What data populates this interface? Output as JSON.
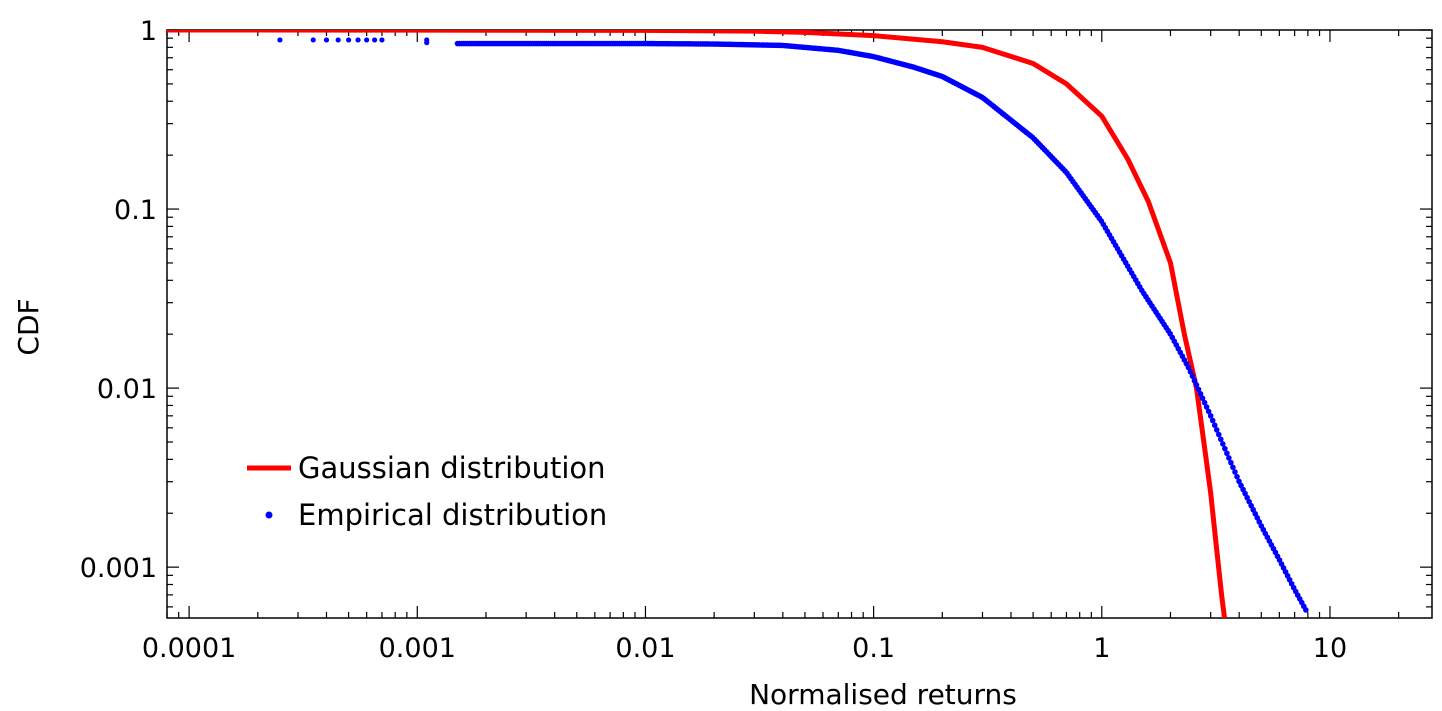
{
  "chart_data": {
    "type": "scatter",
    "xlabel": "Normalised returns",
    "ylabel": "CDF",
    "x_scale": "log",
    "y_scale": "log",
    "xlim": [
      8e-05,
      28
    ],
    "ylim": [
      0.00052,
      1
    ],
    "x_ticks": [
      0.0001,
      0.001,
      0.01,
      0.1,
      1,
      10
    ],
    "x_tick_labels": [
      "0.0001",
      "0.001",
      "0.01",
      "0.1",
      "1",
      "10"
    ],
    "y_ticks": [
      0.001,
      0.01,
      0.1,
      1
    ],
    "y_tick_labels": [
      "0.001",
      "0.01",
      "0.1",
      "1"
    ],
    "grid": false,
    "legend_position": "bottom-left",
    "series": [
      {
        "name": "Gaussian distribution",
        "style": "line",
        "color": "#ff0000",
        "points": [
          [
            8e-05,
            1.0
          ],
          [
            0.001,
            0.999
          ],
          [
            0.01,
            0.995
          ],
          [
            0.03,
            0.985
          ],
          [
            0.05,
            0.97
          ],
          [
            0.1,
            0.93
          ],
          [
            0.2,
            0.86
          ],
          [
            0.3,
            0.8
          ],
          [
            0.5,
            0.65
          ],
          [
            0.7,
            0.5
          ],
          [
            1.0,
            0.33
          ],
          [
            1.3,
            0.19
          ],
          [
            1.6,
            0.11
          ],
          [
            2.0,
            0.05
          ],
          [
            2.3,
            0.02
          ],
          [
            2.6,
            0.01
          ],
          [
            2.8,
            0.005
          ],
          [
            3.0,
            0.0026
          ],
          [
            3.2,
            0.0012
          ],
          [
            3.35,
            0.0007
          ],
          [
            3.45,
            0.00052
          ]
        ]
      },
      {
        "name": "Empirical distribution",
        "style": "dots",
        "color": "#0000ff",
        "points": [
          [
            0.00025,
            0.88
          ],
          [
            0.00035,
            0.88
          ],
          [
            0.0004,
            0.88
          ],
          [
            0.00045,
            0.88
          ],
          [
            0.0005,
            0.88
          ],
          [
            0.00055,
            0.88
          ],
          [
            0.0006,
            0.88
          ],
          [
            0.00065,
            0.88
          ],
          [
            0.0007,
            0.88
          ],
          [
            0.0011,
            0.88
          ],
          [
            0.0011,
            0.85
          ],
          [
            0.0015,
            0.84
          ],
          [
            0.002,
            0.84
          ],
          [
            0.003,
            0.84
          ],
          [
            0.005,
            0.84
          ],
          [
            0.01,
            0.84
          ],
          [
            0.02,
            0.835
          ],
          [
            0.04,
            0.82
          ],
          [
            0.07,
            0.77
          ],
          [
            0.1,
            0.71
          ],
          [
            0.15,
            0.62
          ],
          [
            0.2,
            0.55
          ],
          [
            0.3,
            0.42
          ],
          [
            0.5,
            0.25
          ],
          [
            0.7,
            0.16
          ],
          [
            1.0,
            0.085
          ],
          [
            1.5,
            0.035
          ],
          [
            2.0,
            0.02
          ],
          [
            2.4,
            0.013
          ],
          [
            3.0,
            0.007
          ],
          [
            4.0,
            0.003
          ],
          [
            5.0,
            0.0017
          ],
          [
            6.0,
            0.0011
          ],
          [
            7.0,
            0.00075
          ],
          [
            8.0,
            0.00055
          ]
        ]
      }
    ]
  }
}
